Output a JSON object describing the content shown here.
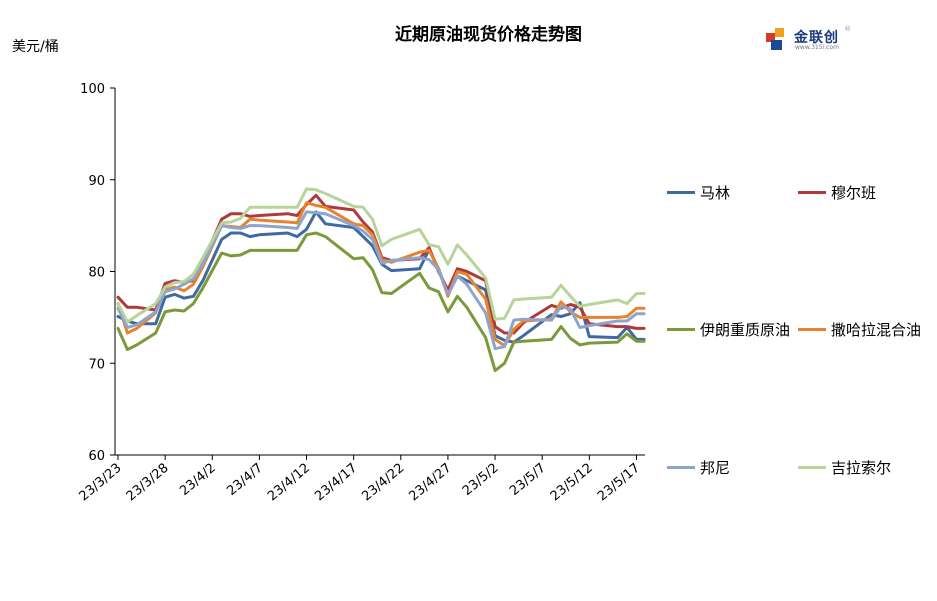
{
  "header": {
    "title": "近期原油现货价格走势图",
    "unit": "美元/桶"
  },
  "logo": {
    "text": "金联创",
    "sub": "www.315i.com",
    "reg": "®"
  },
  "chart_data": {
    "type": "line",
    "title": "近期原油现货价格走势图",
    "ylabel": "美元/桶",
    "ylim": [
      60,
      100
    ],
    "yticks": [
      60,
      70,
      80,
      90,
      100
    ],
    "x_tick_labels": [
      "23/3/23",
      "23/3/28",
      "23/4/2",
      "23/4/7",
      "23/4/12",
      "23/4/17",
      "23/4/22",
      "23/4/27",
      "23/5/2",
      "23/5/7",
      "23/5/12",
      "23/5/17"
    ],
    "x_tick_days": [
      0,
      5,
      10,
      15,
      20,
      25,
      30,
      35,
      40,
      45,
      50,
      55
    ],
    "x_range_days": [
      0,
      55.8
    ],
    "grid": false,
    "legend_position": "right",
    "colors": {
      "马林": "#3e6aa0",
      "穆尔班": "#b0393b",
      "伊朗重质原油": "#7b9a3c",
      "撒哈拉混合油": "#e8832d",
      "邦尼": "#8fa4cc",
      "吉拉索尔": "#b7d49a"
    },
    "x_days": [
      0,
      1,
      2,
      4,
      5,
      6,
      7,
      8,
      9,
      11,
      12,
      13,
      14,
      15,
      18,
      19,
      20,
      21,
      22,
      25,
      26,
      27,
      28,
      29,
      32,
      33,
      34,
      35,
      36,
      37,
      39,
      40,
      41,
      42,
      43,
      46,
      47,
      48,
      49,
      50,
      53,
      54,
      55,
      55.8
    ],
    "series": [
      {
        "name": "马林",
        "values": [
          75.1,
          74.6,
          74.3,
          74.3,
          77.2,
          77.5,
          77.1,
          77.3,
          79.0,
          83.5,
          84.2,
          84.2,
          83.8,
          84.0,
          84.2,
          83.8,
          84.6,
          86.5,
          85.2,
          84.8,
          83.8,
          82.8,
          80.8,
          80.1,
          80.3,
          82.4,
          80.3,
          77.5,
          79.5,
          79.0,
          78.0,
          73.0,
          72.5,
          72.3,
          73.0,
          75.3,
          75.1,
          75.4,
          76.6,
          72.9,
          72.8,
          73.9,
          72.6,
          72.6
        ]
      },
      {
        "name": "穆尔班",
        "values": [
          77.2,
          76.1,
          76.1,
          75.8,
          78.7,
          79.0,
          78.8,
          79.0,
          81.0,
          85.7,
          86.3,
          86.3,
          86.0,
          86.1,
          86.3,
          86.1,
          87.3,
          88.3,
          87.1,
          86.7,
          85.4,
          84.3,
          81.5,
          81.2,
          81.4,
          82.6,
          80.0,
          78.0,
          80.3,
          80.0,
          79.0,
          74.0,
          73.3,
          73.3,
          74.4,
          76.3,
          76.0,
          76.4,
          76.1,
          74.3,
          74.0,
          74.0,
          73.8,
          73.8
        ]
      },
      {
        "name": "伊朗重质原油",
        "values": [
          73.8,
          71.5,
          72.0,
          73.3,
          75.6,
          75.8,
          75.7,
          76.5,
          78.2,
          82.0,
          81.7,
          81.8,
          82.3,
          82.3,
          82.3,
          82.3,
          84.0,
          84.2,
          83.8,
          81.4,
          81.5,
          80.2,
          77.7,
          77.6,
          79.8,
          78.2,
          77.8,
          75.6,
          77.3,
          76.1,
          72.8,
          69.2,
          70.0,
          72.3,
          72.4,
          72.6,
          74.0,
          72.7,
          72.0,
          72.2,
          72.3,
          73.2,
          72.4,
          72.4
        ]
      },
      {
        "name": "撒哈拉混合油",
        "values": [
          76.5,
          73.3,
          73.8,
          75.5,
          78.0,
          78.3,
          77.9,
          78.6,
          80.5,
          85.0,
          84.9,
          84.8,
          85.7,
          85.6,
          85.4,
          85.3,
          87.5,
          87.2,
          87.0,
          85.2,
          85.0,
          84.0,
          81.3,
          81.0,
          82.1,
          82.3,
          80.3,
          77.3,
          80.0,
          79.7,
          77.0,
          72.6,
          71.9,
          73.7,
          74.6,
          74.8,
          76.7,
          75.6,
          75.0,
          75.0,
          75.0,
          75.1,
          76.0,
          76.0
        ]
      },
      {
        "name": "邦尼",
        "values": [
          76.0,
          73.9,
          74.2,
          75.6,
          77.8,
          78.1,
          78.6,
          79.2,
          80.8,
          85.0,
          84.8,
          84.7,
          85.0,
          85.0,
          84.8,
          84.7,
          86.5,
          86.4,
          86.3,
          85.0,
          84.4,
          83.5,
          80.9,
          81.2,
          81.5,
          81.3,
          80.2,
          77.5,
          79.5,
          78.6,
          75.5,
          71.6,
          71.8,
          74.7,
          74.8,
          74.7,
          76.2,
          75.9,
          73.9,
          74.1,
          74.6,
          74.6,
          75.4,
          75.4
        ]
      },
      {
        "name": "吉拉索尔",
        "values": [
          76.5,
          74.5,
          75.2,
          76.5,
          78.3,
          78.8,
          78.9,
          79.7,
          81.5,
          85.3,
          85.4,
          85.8,
          87.0,
          87.0,
          87.0,
          87.0,
          89.0,
          88.9,
          88.5,
          87.1,
          87.0,
          85.7,
          82.8,
          83.5,
          84.6,
          82.9,
          82.7,
          80.8,
          82.9,
          81.8,
          79.3,
          74.8,
          74.9,
          76.9,
          77.0,
          77.2,
          78.5,
          77.3,
          76.2,
          76.4,
          76.9,
          76.5,
          77.6,
          77.6
        ]
      }
    ]
  }
}
